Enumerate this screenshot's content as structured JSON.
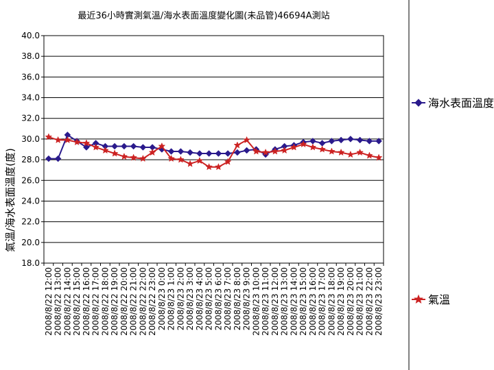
{
  "chart_data": {
    "type": "line",
    "title": "最近36小時實測氣溫/海水表面溫度變化圖(未品管)46694A測站",
    "xlabel": "",
    "ylabel": "氣溫/海水表面溫度(度)",
    "ylim": [
      18.0,
      40.0
    ],
    "yticks": [
      "18.0",
      "20.0",
      "22.0",
      "24.0",
      "26.0",
      "28.0",
      "30.0",
      "32.0",
      "34.0",
      "36.0",
      "38.0",
      "40.0"
    ],
    "grid": "horizontal",
    "legend_position": "right",
    "categories": [
      "2008/8/22 12:00",
      "2008/8/22 13:00",
      "2008/8/22 14:00",
      "2008/8/22 15:00",
      "2008/8/22 16:00",
      "2008/8/22 17:00",
      "2008/8/22 18:00",
      "2008/8/22 19:00",
      "2008/8/22 20:00",
      "2008/8/22 21:00",
      "2008/8/22 22:00",
      "2008/8/22 23:00",
      "2008/8/23 0:00",
      "2008/8/23 1:00",
      "2008/8/23 2:00",
      "2008/8/23 3:00",
      "2008/8/23 4:00",
      "2008/8/23 5:00",
      "2008/8/23 6:00",
      "2008/8/23 7:00",
      "2008/8/23 8:00",
      "2008/8/23 9:00",
      "2008/8/23 10:00",
      "2008/8/23 11:00",
      "2008/8/23 12:00",
      "2008/8/23 13:00",
      "2008/8/23 14:00",
      "2008/8/23 15:00",
      "2008/8/23 16:00",
      "2008/8/23 17:00",
      "2008/8/23 18:00",
      "2008/8/23 19:00",
      "2008/8/23 20:00",
      "2008/8/23 21:00",
      "2008/8/23 22:00",
      "2008/8/23 23:00"
    ],
    "xtick_labels": [
      "2008/8/22 12:00",
      "2008/8/22 13:00",
      "2008/8/22 14:00",
      "2008/8/22 15:00",
      "2008/8/22 16:00",
      "2008/8/22 17:00",
      "2008/8/22 18:00",
      "2008/8/22 19:00",
      "2008/8/22 20:00",
      "2008/8/22 21:00",
      "2008/8/22 22:00",
      "2008/8/22 23:00",
      "2008/8/23 0:00",
      "2008/8/23 1:00",
      "2008/8/23 2:00",
      "2008/8/23 3:00",
      "2008/8/23 4:00",
      "2008/8/23 5:00",
      "2008/8/23 6:00",
      "2008/8/23 7:00",
      "2008/8/23 8:00",
      "2008/8/23 9:00",
      "2008/8/23 10:00",
      "2008/8/23 11:00",
      "2008/8/23 12:00",
      "2008/8/23 13:00",
      "2008/8/23 14:00",
      "2008/8/23 15:00",
      "2008/8/23 16:00",
      "2008/8/23 17:00",
      "2008/8/23 18:00",
      "2008/8/23 19:00",
      "2008/8/23 20:00",
      "2008/8/23 21:00",
      "2008/8/23 22:00",
      "2008/8/23 23:00"
    ],
    "series": [
      {
        "name": "海水表面溫度",
        "color": "#2a1a8c",
        "marker": "diamond",
        "values": [
          28.1,
          28.1,
          30.4,
          29.8,
          29.2,
          29.6,
          29.3,
          29.3,
          29.3,
          29.3,
          29.2,
          29.2,
          29.0,
          28.8,
          28.8,
          28.7,
          28.6,
          28.6,
          28.6,
          28.6,
          28.7,
          28.9,
          29.0,
          28.5,
          29.0,
          29.3,
          29.4,
          29.7,
          29.8,
          29.6,
          29.8,
          29.9,
          30.0,
          29.9,
          29.8,
          29.8
        ]
      },
      {
        "name": "氣溫",
        "color": "#cc2222",
        "marker": "triangle",
        "values": [
          30.2,
          29.9,
          29.9,
          29.7,
          29.6,
          29.2,
          28.9,
          28.6,
          28.3,
          28.2,
          28.1,
          28.7,
          29.3,
          28.1,
          28.0,
          27.6,
          27.9,
          27.3,
          27.3,
          27.8,
          29.4,
          29.9,
          28.8,
          28.7,
          28.8,
          28.9,
          29.2,
          29.5,
          29.2,
          29.0,
          28.8,
          28.7,
          28.5,
          28.7,
          28.4,
          28.2
        ]
      }
    ]
  }
}
